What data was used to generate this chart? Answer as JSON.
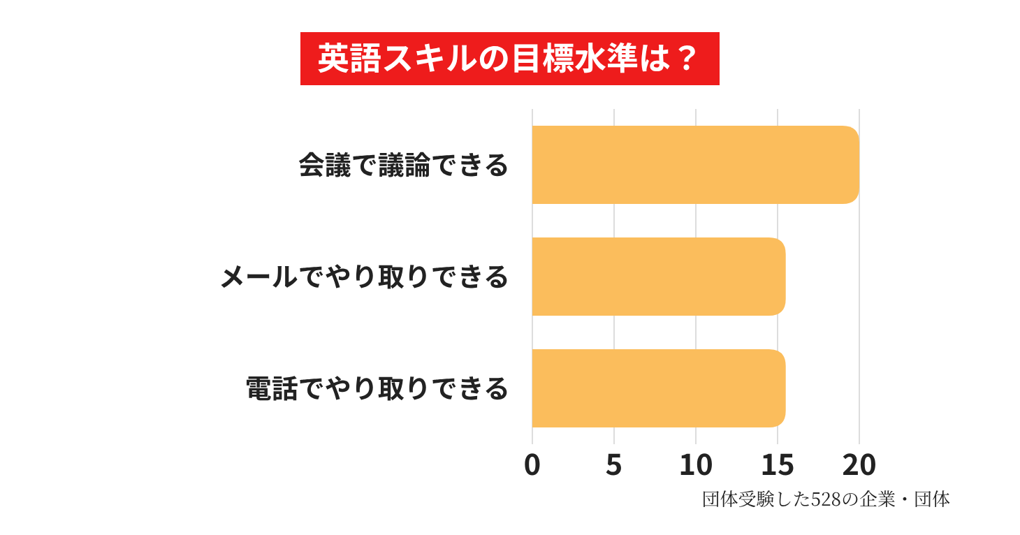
{
  "chart_data": {
    "type": "bar",
    "orientation": "horizontal",
    "title": "英語スキルの目標水準は？",
    "categories": [
      "会議で議論できる",
      "メールでやり取りできる",
      "電話でやり取りできる"
    ],
    "values": [
      20,
      15.5,
      15.5
    ],
    "color": "#fbbd5c",
    "xlim": [
      0,
      20
    ],
    "xticks": [
      0,
      5,
      10,
      15,
      20
    ],
    "grid": "x",
    "annotations": [
      "団体受験した528の企業・団体"
    ]
  }
}
